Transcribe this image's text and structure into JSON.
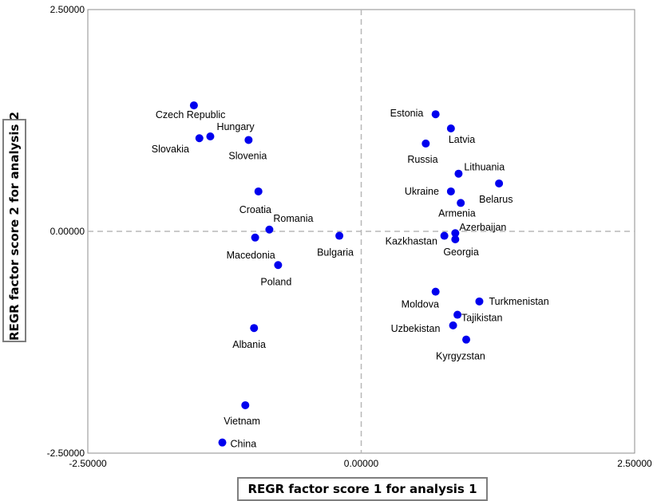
{
  "chart_data": {
    "type": "scatter",
    "xlabel": "REGR factor score 1 for analysis 1",
    "ylabel": "REGR factor score 2 for analysis 2",
    "xlim": [
      -2.5,
      2.5
    ],
    "ylim": [
      -2.5,
      2.5
    ],
    "x_ticks": [
      "-2.50000",
      "0.00000",
      "2.50000"
    ],
    "y_ticks": [
      "2.50000",
      "0.00000",
      "-2.50000"
    ],
    "reference_lines": {
      "x": 0,
      "y": 0,
      "style": "dashed"
    },
    "grid": false,
    "marker_color": "#0000ee",
    "points": [
      {
        "label": "Czech Republic",
        "x": -1.53,
        "y": 1.42
      },
      {
        "label": "Hungary",
        "x": -1.38,
        "y": 1.07
      },
      {
        "label": "Slovakia",
        "x": -1.48,
        "y": 1.05
      },
      {
        "label": "Slovenia",
        "x": -1.03,
        "y": 1.03
      },
      {
        "label": "Croatia",
        "x": -0.94,
        "y": 0.45
      },
      {
        "label": "Romania",
        "x": -0.84,
        "y": 0.02
      },
      {
        "label": "Macedonia",
        "x": -0.97,
        "y": -0.07
      },
      {
        "label": "Poland",
        "x": -0.76,
        "y": -0.38
      },
      {
        "label": "Bulgaria",
        "x": -0.2,
        "y": -0.05
      },
      {
        "label": "Albania",
        "x": -0.98,
        "y": -1.09
      },
      {
        "label": "Vietnam",
        "x": -1.06,
        "y": -1.96
      },
      {
        "label": "China",
        "x": -1.27,
        "y": -2.38
      },
      {
        "label": "Estonia",
        "x": 0.68,
        "y": 1.32
      },
      {
        "label": "Latvia",
        "x": 0.82,
        "y": 1.16
      },
      {
        "label": "Russia",
        "x": 0.59,
        "y": 0.99
      },
      {
        "label": "Lithuania",
        "x": 0.89,
        "y": 0.65
      },
      {
        "label": "Belarus",
        "x": 1.26,
        "y": 0.54
      },
      {
        "label": "Ukraine",
        "x": 0.82,
        "y": 0.45
      },
      {
        "label": "Armenia",
        "x": 0.91,
        "y": 0.32
      },
      {
        "label": "Azerbaijan",
        "x": 0.86,
        "y": -0.02
      },
      {
        "label": "Kazkhastan",
        "x": 0.76,
        "y": -0.05
      },
      {
        "label": "Georgia",
        "x": 0.86,
        "y": -0.09
      },
      {
        "label": "Moldova",
        "x": 0.68,
        "y": -0.68
      },
      {
        "label": "Turkmenistan",
        "x": 1.08,
        "y": -0.79
      },
      {
        "label": "Tajikistan",
        "x": 0.88,
        "y": -0.94
      },
      {
        "label": "Uzbekistan",
        "x": 0.84,
        "y": -1.06
      },
      {
        "label": "Kyrgyzstan",
        "x": 0.96,
        "y": -1.22
      }
    ]
  }
}
